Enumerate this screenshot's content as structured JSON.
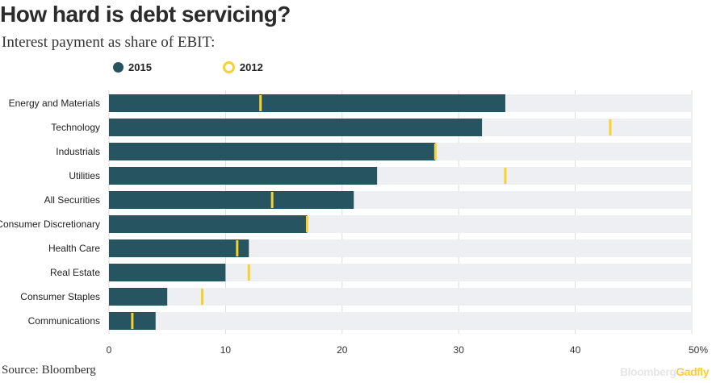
{
  "title": "How hard is debt servicing?",
  "subtitle": "Interest payment as share of EBIT:",
  "legend": {
    "series_2015": "2015",
    "series_2012": "2012"
  },
  "source": "Source: Bloomberg",
  "brand": {
    "part1": "Bloomberg",
    "part2": "Gadfly"
  },
  "colors": {
    "bar_2015": "#265461",
    "marker_2012": "#f5d230",
    "track": "#eeeff2"
  },
  "chart_data": {
    "type": "bar",
    "orientation": "horizontal",
    "categories": [
      "Energy and Materials",
      "Technology",
      "Industrials",
      "Utilities",
      "All Securities",
      "Consumer Discretionary",
      "Health Care",
      "Real Estate",
      "Consumer Staples",
      "Communications"
    ],
    "series": [
      {
        "name": "2015",
        "values": [
          34,
          32,
          28,
          23,
          21,
          17,
          12,
          10,
          5,
          4
        ]
      },
      {
        "name": "2012",
        "values": [
          13,
          43,
          28,
          34,
          14,
          17,
          11,
          12,
          8,
          2
        ]
      }
    ],
    "xlim": [
      0,
      50
    ],
    "xticks": [
      "0",
      "10",
      "20",
      "30",
      "40",
      "50%"
    ],
    "legend_position": "top-left"
  }
}
